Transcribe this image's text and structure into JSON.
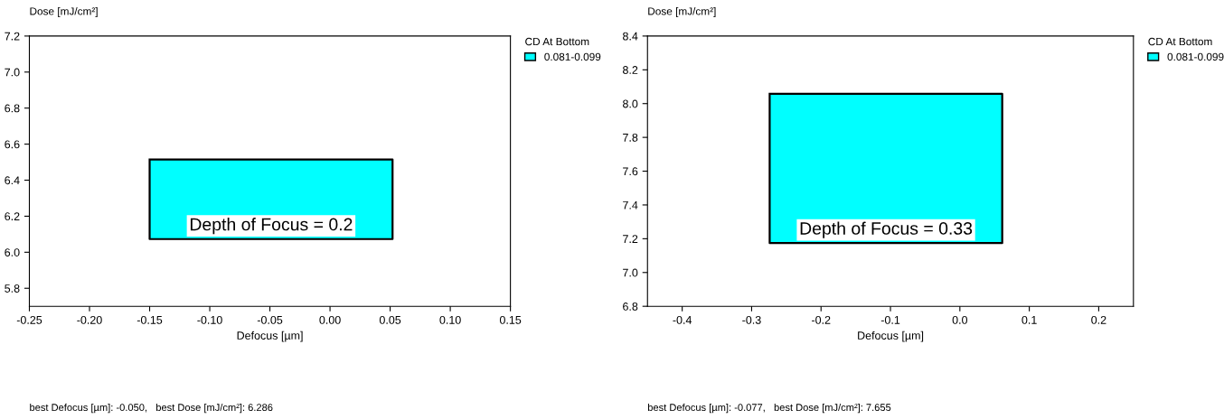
{
  "chart_data": [
    {
      "type": "line",
      "xlabel": "Defocus [µm]",
      "ylabel": "Dose [mJ/cm²]",
      "legend_title": "CD At Bottom",
      "legend": "top right",
      "grid": false,
      "series": [
        {
          "name": "0.081-0.099",
          "color": "#00ffff",
          "x": [
            -0.15,
            0.052
          ],
          "values": [
            null,
            null
          ],
          "lower": [
            6.073,
            6.073
          ],
          "upper": [
            6.515,
            6.515
          ]
        }
      ],
      "xlim": [
        -0.25,
        0.15
      ],
      "xticks": [
        -0.25,
        {
          "value": -0.2,
          "label": "-0.20"
        },
        -0.15,
        {
          "value": -0.1,
          "label": "-0.10"
        },
        -0.05,
        {
          "value": 0,
          "label": "0.00"
        },
        0.05,
        {
          "value": 0.1,
          "label": "0.10"
        },
        0.15
      ],
      "ylim": [
        5.7,
        7.2
      ],
      "yticks": [
        5.8,
        {
          "value": 6,
          "label": "6.0"
        },
        6.2,
        6.4,
        6.6,
        6.8,
        {
          "value": 7,
          "label": "7.0"
        },
        7.2
      ],
      "annotations": [
        "Depth of Focus = 0.2",
        "best Defocus [µm]: -0.050,   best Dose [mJ/cm²]: 6.286"
      ]
    },
    {
      "type": "line",
      "xlabel": "Defocus [µm]",
      "ylabel": "Dose [mJ/cm²]",
      "legend_title": "CD At Bottom",
      "legend": "top right",
      "grid": false,
      "series": [
        {
          "name": "0.081-0.099",
          "color": "#00ffff",
          "x": [
            -0.274,
            0.061
          ],
          "values": [
            null,
            null
          ],
          "lower": [
            7.174,
            7.174
          ],
          "upper": [
            8.058,
            8.058
          ]
        }
      ],
      "xlim": [
        -0.45,
        0.25
      ],
      "xticks": [
        -0.4,
        -0.3,
        -0.2,
        -0.1,
        {
          "value": 0,
          "label": "0.0"
        },
        0.1,
        0.2
      ],
      "ylim": [
        6.8,
        8.4
      ],
      "yticks": [
        6.8,
        {
          "value": 7,
          "label": "7.0"
        },
        7.2,
        7.4,
        7.6,
        7.8,
        {
          "value": 8,
          "label": "8.0"
        },
        8.2,
        8.4
      ],
      "annotations": [
        "Depth of Focus = 0.33",
        "best Defocus [µm]: -0.077,   best Dose [mJ/cm²]: 7.655"
      ]
    }
  ]
}
